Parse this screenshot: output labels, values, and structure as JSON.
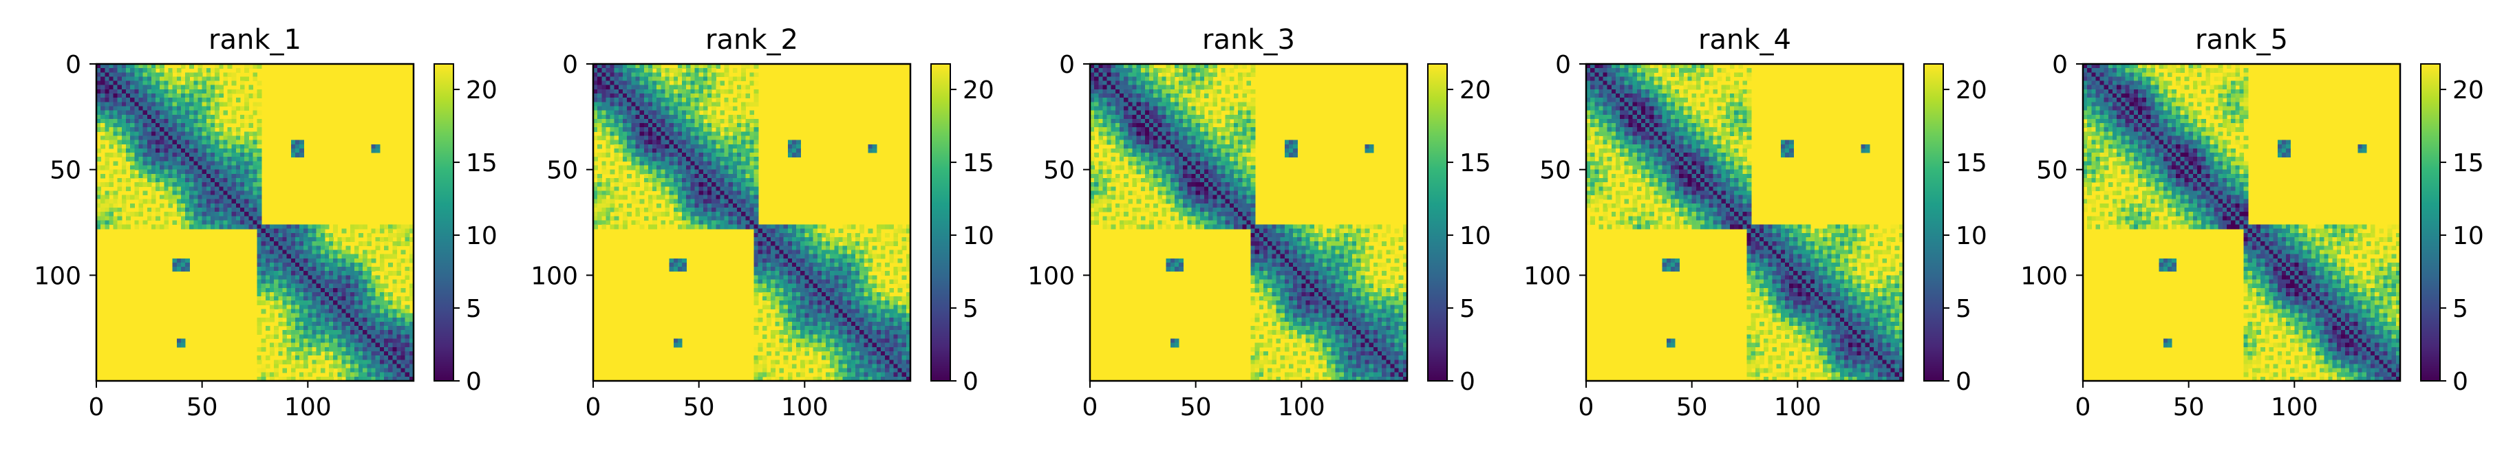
{
  "chart_data": [
    {
      "type": "heatmap",
      "title": "rank_1",
      "xlabel": "",
      "ylabel": "",
      "x_ticks": [
        0,
        50,
        100
      ],
      "y_ticks": [
        0,
        50,
        100
      ],
      "xlim": [
        0,
        150
      ],
      "ylim": [
        150,
        0
      ],
      "colorbar": {
        "ticks": [
          0,
          5,
          10,
          15,
          20
        ],
        "range": [
          0,
          21.75
        ],
        "colormap": "viridis"
      },
      "grid": false
    },
    {
      "type": "heatmap",
      "title": "rank_2",
      "xlabel": "",
      "ylabel": "",
      "x_ticks": [
        0,
        50,
        100
      ],
      "y_ticks": [
        0,
        50,
        100
      ],
      "xlim": [
        0,
        150
      ],
      "ylim": [
        150,
        0
      ],
      "colorbar": {
        "ticks": [
          0,
          5,
          10,
          15,
          20
        ],
        "range": [
          0,
          21.75
        ],
        "colormap": "viridis"
      },
      "grid": false
    },
    {
      "type": "heatmap",
      "title": "rank_3",
      "xlabel": "",
      "ylabel": "",
      "x_ticks": [
        0,
        50,
        100
      ],
      "y_ticks": [
        0,
        50,
        100
      ],
      "xlim": [
        0,
        150
      ],
      "ylim": [
        150,
        0
      ],
      "colorbar": {
        "ticks": [
          0,
          5,
          10,
          15,
          20
        ],
        "range": [
          0,
          21.75
        ],
        "colormap": "viridis"
      },
      "grid": false
    },
    {
      "type": "heatmap",
      "title": "rank_4",
      "xlabel": "",
      "ylabel": "",
      "x_ticks": [
        0,
        50,
        100
      ],
      "y_ticks": [
        0,
        50,
        100
      ],
      "xlim": [
        0,
        150
      ],
      "ylim": [
        150,
        0
      ],
      "colorbar": {
        "ticks": [
          0,
          5,
          10,
          15,
          20
        ],
        "range": [
          0,
          21.75
        ],
        "colormap": "viridis"
      },
      "grid": false
    },
    {
      "type": "heatmap",
      "title": "rank_5",
      "xlabel": "",
      "ylabel": "",
      "x_ticks": [
        0,
        50,
        100
      ],
      "y_ticks": [
        0,
        50,
        100
      ],
      "xlim": [
        0,
        150
      ],
      "ylim": [
        150,
        0
      ],
      "colorbar": {
        "ticks": [
          0,
          5,
          10,
          15,
          20
        ],
        "range": [
          0,
          21.75
        ],
        "colormap": "viridis"
      },
      "grid": false
    }
  ],
  "colors": {
    "viridis": [
      "#440154",
      "#482878",
      "#3e4989",
      "#31688e",
      "#26828e",
      "#1f9e89",
      "#35b779",
      "#6ece58",
      "#b5de2b",
      "#fde725"
    ],
    "axis": "#000000",
    "background": "#ffffff"
  }
}
